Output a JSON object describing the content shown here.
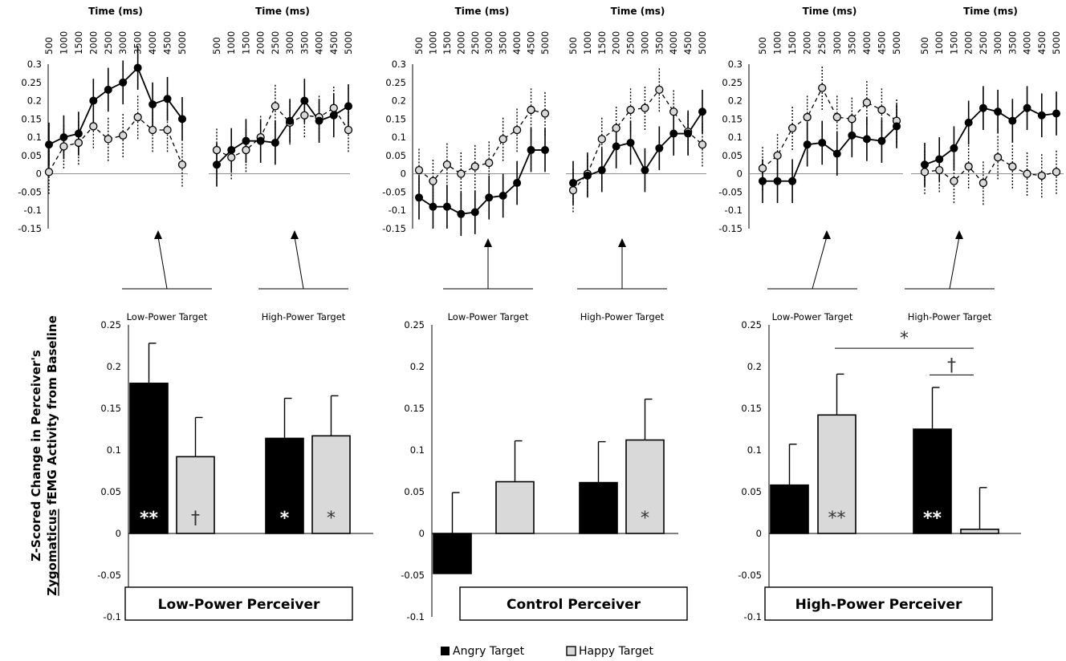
{
  "y_axis_label_line1": "Z-Scored Change in Perceiver's",
  "y_axis_label_line2": "Zygomaticus fEMG Activity from Baseline",
  "y_axis_label_underlined": "Zygomaticus",
  "legend": [
    {
      "label": "Angry Target",
      "color": "#000000"
    },
    {
      "label": "Happy Target",
      "color": "#d9d9d9"
    }
  ],
  "colors": {
    "angry": "#000000",
    "happy": "#d9d9d9",
    "line": "#000000"
  },
  "chart_data": [
    {
      "panel": "Low-Power Perceiver",
      "type": "bar",
      "ylim": [
        -0.1,
        0.25
      ],
      "yticks": [
        "0.25",
        "0.2",
        "0.15",
        "0.1",
        "0.05",
        "0",
        "-0.05",
        "-0.1"
      ],
      "groups": [
        {
          "label": "Low-Power Target",
          "bars": [
            {
              "series": "Angry Target",
              "value": 0.18,
              "err": 0.048,
              "sig": "**"
            },
            {
              "series": "Happy Target",
              "value": 0.092,
              "err": 0.047,
              "sig": "†"
            }
          ]
        },
        {
          "label": "High-Power Target",
          "bars": [
            {
              "series": "Angry Target",
              "value": 0.114,
              "err": 0.048,
              "sig": "*"
            },
            {
              "series": "Happy Target",
              "value": 0.117,
              "err": 0.048,
              "sig": "*"
            }
          ]
        }
      ],
      "comparisons": [],
      "timecourse": [
        {
          "target": "Low-Power Target",
          "type": "line",
          "title": "Time (ms)",
          "x": [
            "500",
            "1000",
            "1500",
            "2000",
            "2500",
            "3000",
            "3500",
            "4000",
            "4500",
            "5000"
          ],
          "ylim": [
            -0.15,
            0.3
          ],
          "yticks": [
            "0.3",
            "0.25",
            "0.2",
            "0.15",
            "0.1",
            "0.05",
            "0",
            "-0.05",
            "-0.1",
            "-0.15"
          ],
          "angry": [
            0.08,
            0.1,
            0.11,
            0.2,
            0.23,
            0.25,
            0.29,
            0.19,
            0.205,
            0.15
          ],
          "happy": [
            0.005,
            0.075,
            0.085,
            0.13,
            0.095,
            0.105,
            0.155,
            0.12,
            0.12,
            0.025
          ],
          "err": 0.06
        },
        {
          "target": "High-Power Target",
          "type": "line",
          "title": "Time (ms)",
          "x": [
            "500",
            "1000",
            "1500",
            "2000",
            "2500",
            "3000",
            "3500",
            "4000",
            "4500",
            "5000"
          ],
          "ylim": [
            -0.15,
            0.3
          ],
          "yticks": [],
          "angry": [
            0.025,
            0.065,
            0.09,
            0.09,
            0.085,
            0.145,
            0.2,
            0.145,
            0.16,
            0.185
          ],
          "happy": [
            0.065,
            0.045,
            0.065,
            0.1,
            0.185,
            0.14,
            0.16,
            0.155,
            0.18,
            0.12
          ],
          "err": 0.06
        }
      ]
    },
    {
      "panel": "Control Perceiver",
      "type": "bar",
      "ylim": [
        -0.1,
        0.25
      ],
      "yticks": [
        "0.25",
        "0.2",
        "0.15",
        "0.1",
        "0.05",
        "0",
        "-0.05",
        "-0.1"
      ],
      "groups": [
        {
          "label": "Low-Power Target",
          "bars": [
            {
              "series": "Angry Target",
              "value": -0.048,
              "err": 0.049,
              "sig": ""
            },
            {
              "series": "Happy Target",
              "value": 0.062,
              "err": 0.049,
              "sig": ""
            }
          ]
        },
        {
          "label": "High-Power Target",
          "bars": [
            {
              "series": "Angry Target",
              "value": 0.061,
              "err": 0.049,
              "sig": ""
            },
            {
              "series": "Happy Target",
              "value": 0.112,
              "err": 0.049,
              "sig": "*"
            }
          ]
        }
      ],
      "comparisons": [],
      "timecourse": [
        {
          "target": "Low-Power Target",
          "type": "line",
          "title": "Time (ms)",
          "x": [
            "500",
            "1000",
            "1500",
            "2000",
            "2500",
            "3000",
            "3500",
            "4000",
            "4500",
            "5000"
          ],
          "ylim": [
            -0.15,
            0.3
          ],
          "yticks": [
            "0.3",
            "0.25",
            "0.2",
            "0.15",
            "0.1",
            "0.05",
            "0",
            "-0.05",
            "-0.1",
            "-0.15"
          ],
          "angry": [
            -0.065,
            -0.09,
            -0.09,
            -0.11,
            -0.105,
            -0.065,
            -0.06,
            -0.025,
            0.065,
            0.065
          ],
          "happy": [
            0.01,
            -0.02,
            0.025,
            0.0,
            0.02,
            0.03,
            0.095,
            0.12,
            0.175,
            0.165
          ],
          "err": 0.06
        },
        {
          "target": "High-Power Target",
          "type": "line",
          "title": "Time (ms)",
          "x": [
            "500",
            "1000",
            "1500",
            "2000",
            "2500",
            "3000",
            "3500",
            "4000",
            "4500",
            "5000"
          ],
          "ylim": [
            -0.15,
            0.3
          ],
          "yticks": [],
          "angry": [
            -0.025,
            -0.005,
            0.01,
            0.075,
            0.085,
            0.01,
            0.07,
            0.11,
            0.11,
            0.17
          ],
          "happy": [
            -0.045,
            0.0,
            0.095,
            0.125,
            0.175,
            0.18,
            0.23,
            0.17,
            0.115,
            0.08
          ],
          "err": 0.06
        }
      ]
    },
    {
      "panel": "High-Power Perceiver",
      "type": "bar",
      "ylim": [
        -0.1,
        0.25
      ],
      "yticks": [
        "0.25",
        "0.2",
        "0.15",
        "0.1",
        "0.05",
        "0",
        "-0.05",
        "-0.1"
      ],
      "groups": [
        {
          "label": "Low-Power Target",
          "bars": [
            {
              "series": "Angry Target",
              "value": 0.058,
              "err": 0.049,
              "sig": ""
            },
            {
              "series": "Happy Target",
              "value": 0.142,
              "err": 0.049,
              "sig": "**"
            }
          ]
        },
        {
          "label": "High-Power Target",
          "bars": [
            {
              "series": "Angry Target",
              "value": 0.125,
              "err": 0.05,
              "sig": "**"
            },
            {
              "series": "Happy Target",
              "value": 0.005,
              "err": 0.05,
              "sig": ""
            }
          ]
        }
      ],
      "comparisons": [
        {
          "symbol": "*",
          "from": "Low-Power Target / Happy Target",
          "to": "High-Power Target / Happy Target",
          "y": 0.222
        },
        {
          "symbol": "†",
          "from": "High-Power Target / Angry Target",
          "to": "High-Power Target / Happy Target",
          "y": 0.19
        }
      ],
      "timecourse": [
        {
          "target": "Low-Power Target",
          "type": "line",
          "title": "Time (ms)",
          "x": [
            "500",
            "1000",
            "1500",
            "2000",
            "2500",
            "3000",
            "3500",
            "4000",
            "4500",
            "5000"
          ],
          "ylim": [
            -0.15,
            0.3
          ],
          "yticks": [
            "0.3",
            "0.25",
            "0.2",
            "0.15",
            "0.1",
            "0.05",
            "0",
            "-0.05",
            "-0.1",
            "-0.15"
          ],
          "angry": [
            -0.02,
            -0.02,
            -0.02,
            0.08,
            0.085,
            0.055,
            0.105,
            0.095,
            0.09,
            0.13
          ],
          "happy": [
            0.015,
            0.05,
            0.125,
            0.155,
            0.235,
            0.155,
            0.15,
            0.195,
            0.175,
            0.145
          ],
          "err": 0.06
        },
        {
          "target": "High-Power Target",
          "type": "line",
          "title": "Time (ms)",
          "x": [
            "500",
            "1000",
            "1500",
            "2000",
            "2500",
            "3000",
            "3500",
            "4000",
            "4500",
            "5000"
          ],
          "ylim": [
            -0.15,
            0.3
          ],
          "yticks": [],
          "angry": [
            0.025,
            0.04,
            0.07,
            0.14,
            0.18,
            0.17,
            0.145,
            0.18,
            0.16,
            0.165
          ],
          "happy": [
            0.005,
            0.01,
            -0.02,
            0.02,
            -0.025,
            0.045,
            0.02,
            0.0,
            -0.005,
            0.005
          ],
          "err": 0.06
        }
      ]
    }
  ]
}
